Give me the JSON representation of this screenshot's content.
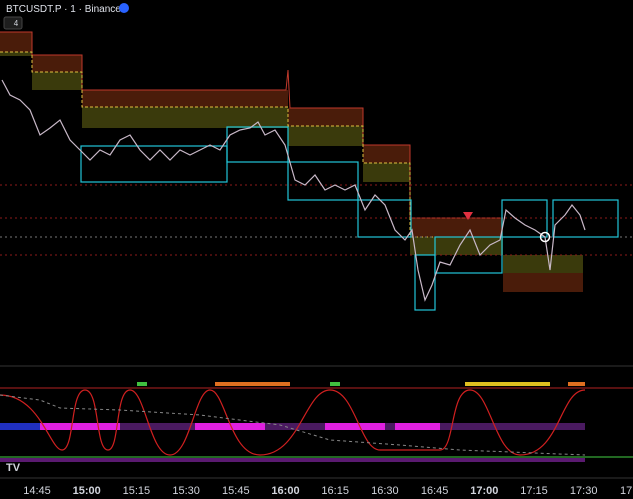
{
  "header": {
    "symbol": "BTCUSDT.P · 1 · Binance",
    "badge": "4"
  },
  "time_axis": {
    "labels": [
      "14:45",
      "15:00",
      "15:15",
      "15:30",
      "15:45",
      "16:00",
      "16:15",
      "16:30",
      "16:45",
      "17:00",
      "17:15",
      "17:30",
      "17"
    ]
  }
}
